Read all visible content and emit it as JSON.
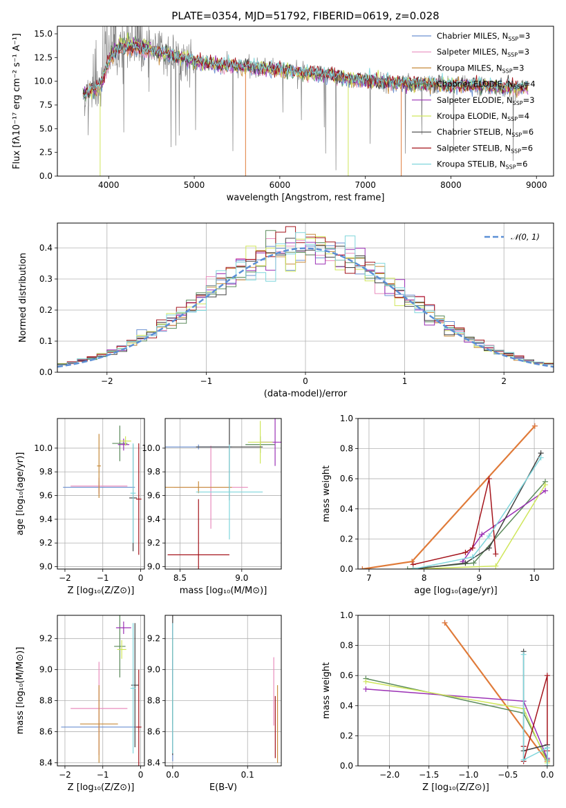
{
  "colors": {
    "Chabrier MILES": "#6a8fd0",
    "Salpeter MILES": "#e98cbd",
    "Kroupa MILES": "#c78a3a",
    "Chabrier ELODIE": "#5a8a5a",
    "Salpeter ELODIE": "#9a2fb4",
    "Kroupa ELODIE": "#cfe65a",
    "Chabrier STELIB": "#404040",
    "Salpeter STELIB": "#a4131b",
    "Kroupa STELIB": "#7fd6dc",
    "orange": "#e07b39",
    "gauss": "#5b8fd6",
    "spectrum_gray": "#7f7f7f"
  },
  "chart_data": [
    {
      "id": "spectrum",
      "type": "line",
      "title": "PLATE=0354, MJD=51792, FIBERID=0619, z=0.028",
      "xlabel": "wavelength [Angstrom, rest frame]",
      "ylabel": "Flux [fλ10⁻¹⁷ erg cm⁻² s⁻¹ A⁻¹]",
      "xlim": [
        3400,
        9200
      ],
      "ylim": [
        0,
        15.8
      ],
      "xticks": [
        4000,
        5000,
        6000,
        7000,
        8000,
        9000
      ],
      "yticks": [
        0.0,
        2.5,
        5.0,
        7.5,
        10.0,
        12.5,
        15.0
      ],
      "tick_labels_x": [
        "4000",
        "5000",
        "6000",
        "7000",
        "8000",
        "9000"
      ],
      "tick_labels_y": [
        "0.0",
        "2.5",
        "5.0",
        "7.5",
        "10.0",
        "12.5",
        "15.0"
      ],
      "legend_position": "top-right",
      "legend": [
        {
          "label": "Chabrier MILES, N",
          "sub": "SSP",
          "suffix": "=3"
        },
        {
          "label": "Salpeter MILES, N",
          "sub": "SSP",
          "suffix": "=3"
        },
        {
          "label": "Kroupa MILES, N",
          "sub": "SSP",
          "suffix": "=3"
        },
        {
          "label": "Chabrier ELODIE, N",
          "sub": "SSP",
          "suffix": "=4"
        },
        {
          "label": "Salpeter ELODIE, N",
          "sub": "SSP",
          "suffix": "=3"
        },
        {
          "label": "Kroupa ELODIE, N",
          "sub": "SSP",
          "suffix": "=4"
        },
        {
          "label": "Chabrier STELIB, N",
          "sub": "SSP",
          "suffix": "=6"
        },
        {
          "label": "Salpeter STELIB, N",
          "sub": "SSP",
          "suffix": "=6"
        },
        {
          "label": "Kroupa STELIB, N",
          "sub": "SSP",
          "suffix": "=6"
        }
      ],
      "continuum": {
        "x": [
          3700,
          3800,
          3900,
          4000,
          4100,
          4200,
          4300,
          4400,
          4600,
          4800,
          5000,
          5200,
          5400,
          5600,
          5800,
          6000,
          6200,
          6400,
          6600,
          6800,
          7000,
          7200,
          7400,
          7600,
          7800,
          8000,
          8200,
          8400,
          8600,
          8800,
          8900
        ],
        "y": [
          8.5,
          9.0,
          9.4,
          12.0,
          13.3,
          13.4,
          13.5,
          13.3,
          13.0,
          12.6,
          12.1,
          11.8,
          11.7,
          11.5,
          11.4,
          11.3,
          11.0,
          10.8,
          10.6,
          10.3,
          10.1,
          9.9,
          9.8,
          9.8,
          9.7,
          9.6,
          9.6,
          9.5,
          9.4,
          9.3,
          9.3
        ]
      }
    },
    {
      "id": "residuals",
      "type": "histogram",
      "xlabel": "(data-model)/error",
      "ylabel": "Normed distribution",
      "xlim": [
        -2.5,
        2.5
      ],
      "ylim": [
        0,
        0.48
      ],
      "xticks": [
        -2,
        -1,
        0,
        1,
        2
      ],
      "yticks": [
        0.0,
        0.1,
        0.2,
        0.3,
        0.4
      ],
      "tick_labels_x": [
        "−2",
        "−1",
        "0",
        "1",
        "2"
      ],
      "tick_labels_y": [
        "0.0",
        "0.1",
        "0.2",
        "0.3",
        "0.4"
      ],
      "legend_position": "top-right",
      "legend": [
        {
          "label": "𝒩(0, 1)"
        }
      ],
      "bin_width": 0.1,
      "x_start": -2.5
    },
    {
      "id": "age-vs-Z",
      "type": "errorbar",
      "xlabel": "Z [log₁₀(Z/Z⊙)]",
      "ylabel": "age  [log₁₀(age/yr)]",
      "xlim": [
        -2.2,
        0.1
      ],
      "ylim": [
        8.98,
        10.25
      ],
      "xticks": [
        -2,
        -1,
        0
      ],
      "yticks": [
        9.0,
        9.2,
        9.4,
        9.6,
        9.8,
        10.0
      ],
      "tick_labels_x": [
        "−2",
        "−1",
        "0"
      ],
      "tick_labels_y": [
        "9.0",
        "9.2",
        "9.4",
        "9.6",
        "9.8",
        "10.0"
      ],
      "points": [
        {
          "c": "Chabrier MILES",
          "x": -1.1,
          "xerr": 0.95,
          "y": 9.67,
          "yerr": 0.05
        },
        {
          "c": "Salpeter MILES",
          "x": -1.1,
          "xerr": 0.75,
          "y": 9.68,
          "yerr": 0.07
        },
        {
          "c": "Kroupa MILES",
          "x": -1.1,
          "xerr": 0.05,
          "y": 9.85,
          "yerr": 0.27
        },
        {
          "c": "Chabrier ELODIE",
          "x": -0.55,
          "xerr": 0.2,
          "y": 10.04,
          "yerr": 0.15
        },
        {
          "c": "Salpeter ELODIE",
          "x": -0.45,
          "xerr": 0.15,
          "y": 10.03,
          "yerr": 0.05
        },
        {
          "c": "Kroupa ELODIE",
          "x": -0.4,
          "xerr": 0.15,
          "y": 10.06,
          "yerr": 0.04
        },
        {
          "c": "Chabrier STELIB",
          "x": -0.2,
          "xerr": 0.1,
          "y": 9.58,
          "yerr": 0.45
        },
        {
          "c": "Salpeter STELIB",
          "x": -0.05,
          "xerr": 0.07,
          "y": 9.57,
          "yerr": 0.47
        },
        {
          "c": "Kroupa STELIB",
          "x": -0.2,
          "xerr": 0.07,
          "y": 9.62,
          "yerr": 0.42
        }
      ]
    },
    {
      "id": "age-vs-mass",
      "type": "errorbar",
      "xlabel": "mass [log₁₀(M/M⊙)]",
      "xlim": [
        8.38,
        9.32
      ],
      "ylim": [
        8.98,
        10.25
      ],
      "xticks": [
        8.5,
        9.0
      ],
      "yticks": [
        9.0,
        9.2,
        9.4,
        9.6,
        9.8,
        10.0
      ],
      "tick_labels_x": [
        "8.5",
        "9.0"
      ],
      "tick_labels_y": [
        "9.0",
        "9.2",
        "9.4",
        "9.6",
        "9.8",
        "10.0"
      ],
      "points": [
        {
          "c": "Chabrier MILES",
          "x": 8.65,
          "xerr": 0.27,
          "y": 10.01,
          "yerr": 0.02
        },
        {
          "c": "Salpeter MILES",
          "x": 8.75,
          "xerr": 0.3,
          "y": 9.67,
          "yerr": 0.35
        },
        {
          "c": "Kroupa MILES",
          "x": 8.65,
          "xerr": 0.27,
          "y": 9.67,
          "yerr": 0.05
        },
        {
          "c": "Chabrier ELODIE",
          "x": 9.15,
          "xerr": 0.12,
          "y": 10.03,
          "yerr": 0.07
        },
        {
          "c": "Salpeter ELODIE",
          "x": 9.27,
          "xerr": 0.12,
          "y": 10.05,
          "yerr": 0.2
        },
        {
          "c": "Kroupa ELODIE",
          "x": 9.15,
          "xerr": 0.1,
          "y": 10.05,
          "yerr": 0.18
        },
        {
          "c": "Chabrier STELIB",
          "x": 8.9,
          "xerr": 0.27,
          "y": 10.01,
          "yerr": 0.45
        },
        {
          "c": "Salpeter STELIB",
          "x": 8.65,
          "xerr": 0.25,
          "y": 9.1,
          "yerr": 0.47
        },
        {
          "c": "Kroupa STELIB",
          "x": 8.9,
          "xerr": 0.27,
          "y": 9.63,
          "yerr": 0.4
        }
      ]
    },
    {
      "id": "weight-vs-age",
      "type": "line",
      "xlabel": "age  [log₁₀(age/yr)]",
      "ylabel": "mass weight",
      "xlim": [
        6.8,
        10.35
      ],
      "ylim": [
        0,
        1.0
      ],
      "xticks": [
        7,
        8,
        9,
        10
      ],
      "yticks": [
        0.0,
        0.2,
        0.4,
        0.6,
        0.8,
        1.0
      ],
      "tick_labels_x": [
        "7",
        "8",
        "9",
        "10"
      ],
      "tick_labels_y": [
        "0.0",
        "0.2",
        "0.4",
        "0.6",
        "0.8",
        "1.0"
      ],
      "series": [
        {
          "c": "Chabrier MILES",
          "x": [
            6.88,
            7.78,
            10.01
          ],
          "y": [
            0.0,
            0.05,
            0.95
          ]
        },
        {
          "c": "Salpeter MILES",
          "x": [
            6.88,
            7.78,
            10.01
          ],
          "y": [
            0.0,
            0.05,
            0.95
          ]
        },
        {
          "c": "orange",
          "x": [
            6.88,
            7.78,
            10.01
          ],
          "y": [
            0.0,
            0.05,
            0.95
          ]
        },
        {
          "c": "Chabrier ELODIE",
          "x": [
            7.7,
            8.9,
            10.2
          ],
          "y": [
            0.0,
            0.04,
            0.58
          ]
        },
        {
          "c": "Salpeter ELODIE",
          "x": [
            8.7,
            9.05,
            10.2
          ],
          "y": [
            0.05,
            0.23,
            0.52
          ]
        },
        {
          "c": "Kroupa ELODIE",
          "x": [
            7.8,
            9.3,
            10.2
          ],
          "y": [
            0.0,
            0.02,
            0.56
          ]
        },
        {
          "c": "Chabrier STELIB",
          "x": [
            7.8,
            8.75,
            9.18,
            10.12
          ],
          "y": [
            0.0,
            0.04,
            0.14,
            0.77
          ]
        },
        {
          "c": "Salpeter STELIB",
          "x": [
            7.8,
            8.75,
            8.88,
            9.18,
            9.3
          ],
          "y": [
            0.03,
            0.11,
            0.14,
            0.6,
            0.1
          ]
        },
        {
          "c": "Kroupa STELIB",
          "x": [
            7.8,
            8.88,
            9.18,
            10.12
          ],
          "y": [
            0.0,
            0.08,
            0.22,
            0.74
          ]
        }
      ]
    },
    {
      "id": "mass-vs-Z",
      "type": "errorbar",
      "xlabel": "Z [log₁₀(Z/Z⊙)]",
      "ylabel": "mass [log₁₀(M/M⊙)]",
      "xlim": [
        -2.2,
        0.1
      ],
      "ylim": [
        8.38,
        9.35
      ],
      "xticks": [
        -2,
        -1,
        0
      ],
      "yticks": [
        8.4,
        8.6,
        8.8,
        9.0,
        9.2
      ],
      "tick_labels_x": [
        "−2",
        "−1",
        "0"
      ],
      "tick_labels_y": [
        "8.4",
        "8.6",
        "8.8",
        "9.0",
        "9.2"
      ],
      "points": [
        {
          "c": "Chabrier MILES",
          "x": -1.1,
          "xerr": 1.0,
          "y": 8.63,
          "yerr": 0.02
        },
        {
          "c": "Salpeter MILES",
          "x": -1.1,
          "xerr": 0.75,
          "y": 8.75,
          "yerr": 0.3
        },
        {
          "c": "Kroupa MILES",
          "x": -1.1,
          "xerr": 0.5,
          "y": 8.65,
          "yerr": 0.25
        },
        {
          "c": "Chabrier ELODIE",
          "x": -0.55,
          "xerr": 0.15,
          "y": 9.15,
          "yerr": 0.2
        },
        {
          "c": "Salpeter ELODIE",
          "x": -0.45,
          "xerr": 0.2,
          "y": 9.27,
          "yerr": 0.04
        },
        {
          "c": "Kroupa ELODIE",
          "x": -0.5,
          "xerr": 0.12,
          "y": 9.13,
          "yerr": 0.06
        },
        {
          "c": "Chabrier STELIB",
          "x": -0.15,
          "xerr": 0.1,
          "y": 8.9,
          "yerr": 0.4
        },
        {
          "c": "Salpeter STELIB",
          "x": -0.05,
          "xerr": 0.07,
          "y": 8.63,
          "yerr": 0.37
        },
        {
          "c": "Kroupa STELIB",
          "x": -0.2,
          "xerr": 0.07,
          "y": 8.88,
          "yerr": 0.42
        }
      ]
    },
    {
      "id": "mass-vs-EBV",
      "type": "errorbar",
      "xlabel": "E(B-V)",
      "xlim": [
        -0.01,
        0.145
      ],
      "ylim": [
        8.38,
        9.35
      ],
      "xticks": [
        0.0,
        0.1
      ],
      "yticks": [
        8.4,
        8.6,
        8.8,
        9.0,
        9.2
      ],
      "tick_labels_x": [
        "0.0",
        "0.1"
      ],
      "tick_labels_y": [
        "8.4",
        "8.6",
        "8.8",
        "9.0",
        "9.2"
      ],
      "points": [
        {
          "c": "Chabrier MILES",
          "x": 0.0,
          "y": 8.63,
          "yerr": 0.22
        },
        {
          "c": "Salpeter MILES",
          "x": 0.135,
          "y": 8.86,
          "yerr": 0.22
        },
        {
          "c": "Kroupa MILES",
          "x": 0.14,
          "y": 8.65,
          "yerr": 0.25
        },
        {
          "c": "Chabrier ELODIE",
          "x": 0.0,
          "y": 8.9,
          "yerr": 0.25
        },
        {
          "c": "Salpeter ELODIE",
          "x": 0.0,
          "y": 9.1,
          "yerr": 0.2
        },
        {
          "c": "Kroupa ELODIE",
          "x": 0.0,
          "y": 9.13,
          "yerr": 0.06
        },
        {
          "c": "Chabrier STELIB",
          "x": 0.0,
          "y": 8.9,
          "yerr": 0.45
        },
        {
          "c": "Salpeter STELIB",
          "x": 0.137,
          "y": 8.63,
          "yerr": 0.2
        },
        {
          "c": "Kroupa STELIB",
          "x": 0.0,
          "y": 8.88,
          "yerr": 0.42
        }
      ]
    },
    {
      "id": "weight-vs-Z",
      "type": "line",
      "xlabel": "Z [log₁₀(Z/Z⊙)]",
      "ylabel": "mass weight",
      "xlim": [
        -2.4,
        0.08
      ],
      "ylim": [
        0,
        1.0
      ],
      "xticks": [
        -2.0,
        -1.5,
        -1.0,
        -0.5,
        0.0
      ],
      "yticks": [
        0.0,
        0.2,
        0.4,
        0.6,
        0.8,
        1.0
      ],
      "tick_labels_x": [
        "−2.0",
        "−1.5",
        "−1.0",
        "−0.5",
        "0.0"
      ],
      "tick_labels_y": [
        "0.0",
        "0.2",
        "0.4",
        "0.6",
        "0.8",
        "1.0"
      ],
      "series": [
        {
          "c": "Chabrier MILES",
          "x": [
            -1.3,
            0.0
          ],
          "y": [
            0.95,
            0.03
          ]
        },
        {
          "c": "Salpeter MILES",
          "x": [
            -1.3,
            0.0
          ],
          "y": [
            0.95,
            0.03
          ]
        },
        {
          "c": "orange",
          "x": [
            -1.3,
            0.0
          ],
          "y": [
            0.95,
            0.03
          ]
        },
        {
          "c": "Chabrier ELODIE",
          "x": [
            -2.3,
            -0.3,
            0.0
          ],
          "y": [
            0.58,
            0.35,
            0.04
          ]
        },
        {
          "c": "Salpeter ELODIE",
          "x": [
            -2.3,
            -0.3,
            0.0
          ],
          "y": [
            0.51,
            0.43,
            0.05
          ]
        },
        {
          "c": "Kroupa ELODIE",
          "x": [
            -2.3,
            -0.3,
            0.0
          ],
          "y": [
            0.56,
            0.38,
            0.02
          ]
        },
        {
          "c": "Chabrier STELIB",
          "x": [
            -0.3,
            -0.3,
            0.0,
            0.0
          ],
          "y": [
            0.76,
            0.1,
            0.14,
            0.0
          ]
        },
        {
          "c": "Salpeter STELIB",
          "x": [
            -0.3,
            -0.3,
            0.0,
            0.0
          ],
          "y": [
            0.13,
            0.03,
            0.6,
            0.1
          ]
        },
        {
          "c": "Kroupa STELIB",
          "x": [
            -0.3,
            -0.3,
            0.0,
            0.0
          ],
          "y": [
            0.74,
            0.04,
            0.12,
            0.0
          ]
        }
      ]
    }
  ]
}
